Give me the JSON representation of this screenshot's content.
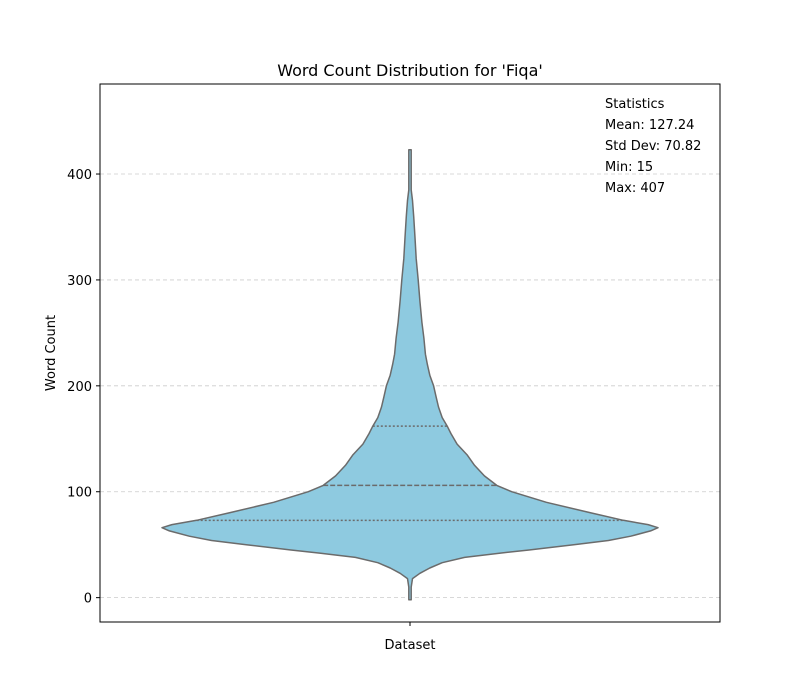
{
  "chart_data": {
    "type": "violin",
    "title": "Word Count Distribution for 'Fiqa'",
    "xlabel": "",
    "ylabel": "Word Count",
    "categories": [
      "Dataset"
    ],
    "ylim": [
      -23,
      485
    ],
    "yticks": [
      0,
      100,
      200,
      300,
      400
    ],
    "grid": "y-dashed",
    "fill_color": "#8ecae0",
    "edge_color": "#6b6b6b",
    "quartiles": {
      "q1": 73,
      "median": 106,
      "q3": 162
    },
    "range": [
      -2,
      423
    ],
    "density_profile": [
      [
        -2,
        0.0
      ],
      [
        10,
        0.005
      ],
      [
        18,
        0.01
      ],
      [
        23,
        0.04
      ],
      [
        28,
        0.08
      ],
      [
        33,
        0.13
      ],
      [
        38,
        0.22
      ],
      [
        42,
        0.36
      ],
      [
        45,
        0.48
      ],
      [
        50,
        0.66
      ],
      [
        54,
        0.8
      ],
      [
        58,
        0.89
      ],
      [
        63,
        0.97
      ],
      [
        66,
        1.0
      ],
      [
        69,
        0.96
      ],
      [
        73,
        0.86
      ],
      [
        80,
        0.73
      ],
      [
        90,
        0.55
      ],
      [
        100,
        0.41
      ],
      [
        106,
        0.35
      ],
      [
        115,
        0.3
      ],
      [
        125,
        0.26
      ],
      [
        135,
        0.23
      ],
      [
        145,
        0.19
      ],
      [
        155,
        0.165
      ],
      [
        162,
        0.15
      ],
      [
        170,
        0.13
      ],
      [
        180,
        0.115
      ],
      [
        190,
        0.105
      ],
      [
        200,
        0.095
      ],
      [
        210,
        0.08
      ],
      [
        220,
        0.07
      ],
      [
        230,
        0.062
      ],
      [
        245,
        0.056
      ],
      [
        260,
        0.048
      ],
      [
        280,
        0.04
      ],
      [
        300,
        0.033
      ],
      [
        320,
        0.025
      ],
      [
        340,
        0.02
      ],
      [
        360,
        0.015
      ],
      [
        375,
        0.01
      ],
      [
        385,
        0.005
      ],
      [
        395,
        0.002
      ],
      [
        423,
        0.0
      ]
    ],
    "stats_box": {
      "heading": "Statistics",
      "lines": [
        "Mean: 127.24",
        "Std Dev: 70.82",
        "Min: 15",
        "Max: 407"
      ]
    }
  }
}
